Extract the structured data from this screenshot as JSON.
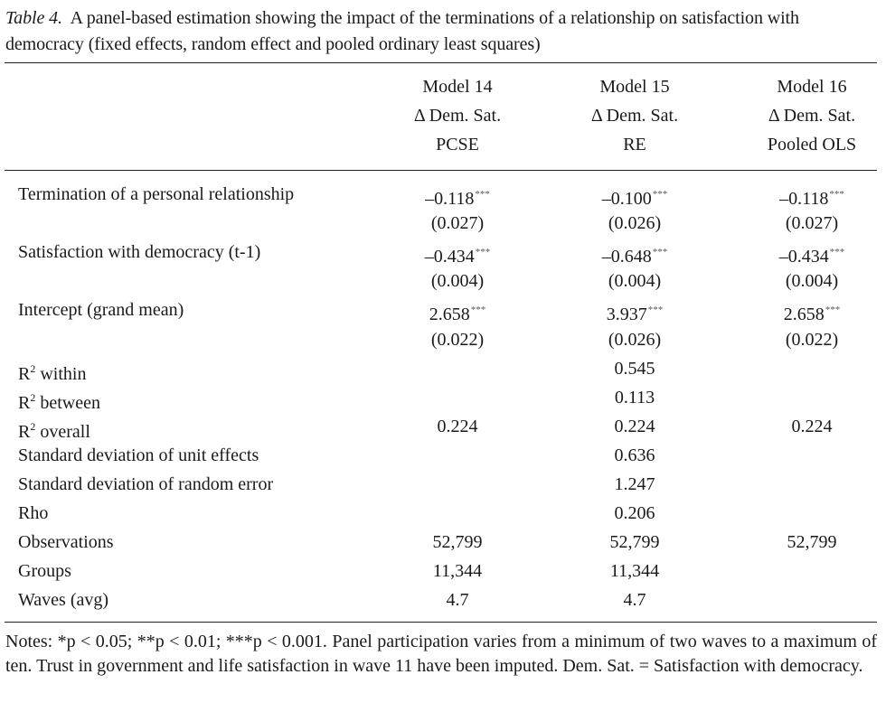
{
  "caption": {
    "label": "Table 4.",
    "text": "A panel-based estimation showing the impact of the terminations of a relationship on satisfaction with democracy (fixed effects, random effect and pooled ordinary least squares)"
  },
  "columns": [
    {
      "model": "Model 14",
      "dv": "Δ Dem. Sat.",
      "method": "PCSE"
    },
    {
      "model": "Model 15",
      "dv": "Δ Dem. Sat.",
      "method": "RE"
    },
    {
      "model": "Model 16",
      "dv": "Δ Dem. Sat.",
      "method": "Pooled OLS"
    }
  ],
  "coef_rows": [
    {
      "label": "Termination of a personal relationship",
      "values": [
        {
          "coef": "–0.118",
          "stars": "***",
          "se": "(0.027)"
        },
        {
          "coef": "–0.100",
          "stars": "***",
          "se": "(0.026)"
        },
        {
          "coef": "–0.118",
          "stars": "***",
          "se": "(0.027)"
        }
      ]
    },
    {
      "label": "Satisfaction with democracy (t-1)",
      "values": [
        {
          "coef": "–0.434",
          "stars": "***",
          "se": "(0.004)"
        },
        {
          "coef": "–0.648",
          "stars": "***",
          "se": "(0.004)"
        },
        {
          "coef": "–0.434",
          "stars": "***",
          "se": "(0.004)"
        }
      ]
    },
    {
      "label": "Intercept (grand mean)",
      "values": [
        {
          "coef": "2.658",
          "stars": "***",
          "se": "(0.022)"
        },
        {
          "coef": "3.937",
          "stars": "***",
          "se": "(0.026)"
        },
        {
          "coef": "2.658",
          "stars": "***",
          "se": "(0.022)"
        }
      ]
    }
  ],
  "stat_rows": [
    {
      "label": "R",
      "sup": "2",
      "label_rest": " within",
      "values": [
        "",
        "0.545",
        ""
      ]
    },
    {
      "label": "R",
      "sup": "2",
      "label_rest": " between",
      "values": [
        "",
        "0.113",
        ""
      ]
    },
    {
      "label": "R",
      "sup": "2",
      "label_rest": " overall",
      "values": [
        "0.224",
        "0.224",
        "0.224"
      ]
    },
    {
      "label": "Standard deviation of unit effects",
      "values": [
        "",
        "0.636",
        ""
      ]
    },
    {
      "label": "Standard deviation of random error",
      "values": [
        "",
        "1.247",
        ""
      ]
    },
    {
      "label": "Rho",
      "values": [
        "",
        "0.206",
        ""
      ]
    },
    {
      "label": "Observations",
      "values": [
        "52,799",
        "52,799",
        "52,799"
      ]
    },
    {
      "label": "Groups",
      "values": [
        "11,344",
        "11,344",
        ""
      ]
    },
    {
      "label": "Waves (avg)",
      "values": [
        "4.7",
        "4.7",
        ""
      ]
    }
  ],
  "notes": "Notes: *p < 0.05; **p < 0.01; ***p < 0.001. Panel participation varies from a minimum of two waves to a maximum of ten. Trust in government and life satisfaction in wave 11 have been imputed. Dem. Sat. = Satisfaction with democracy."
}
